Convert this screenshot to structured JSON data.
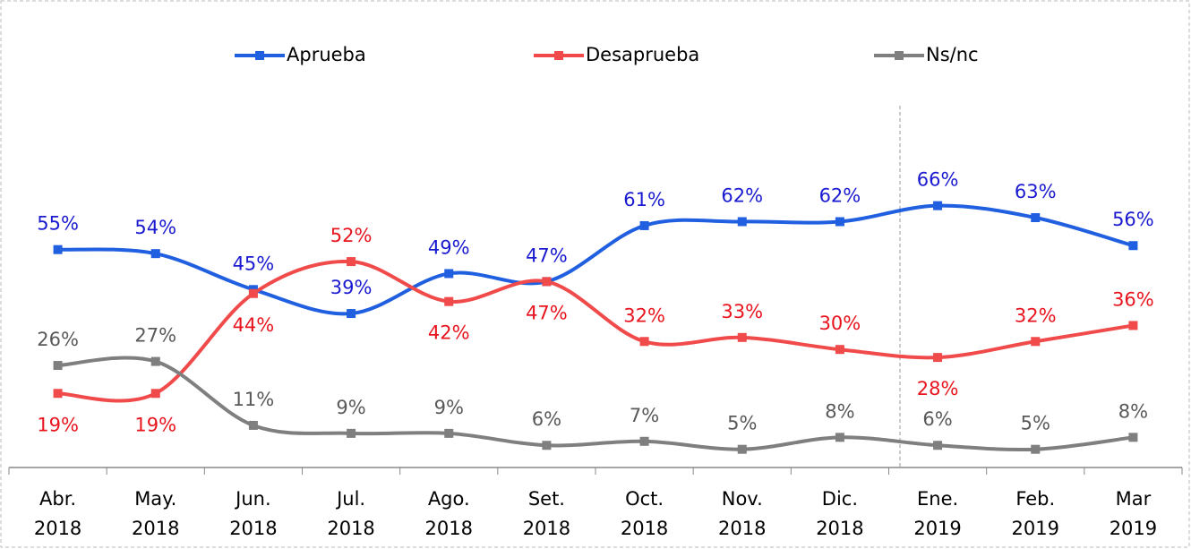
{
  "chart_data": {
    "type": "line",
    "categories": [
      [
        "Abr.",
        "2018"
      ],
      [
        "May.",
        "2018"
      ],
      [
        "Jun.",
        "2018"
      ],
      [
        "Jul.",
        "2018"
      ],
      [
        "Ago.",
        "2018"
      ],
      [
        "Set.",
        "2018"
      ],
      [
        "Oct.",
        "2018"
      ],
      [
        "Nov.",
        "2018"
      ],
      [
        "Dic.",
        "2018"
      ],
      [
        "Ene.",
        "2019"
      ],
      [
        "Feb.",
        "2019"
      ],
      [
        "Mar",
        "2019"
      ]
    ],
    "series": [
      {
        "name": "Aprueba",
        "color": "#1f5fe0",
        "label_color": "#1a1ad0",
        "values": [
          55,
          54,
          45,
          39,
          49,
          47,
          61,
          62,
          62,
          66,
          63,
          56
        ],
        "value_labels": [
          "55%",
          "54%",
          "45%",
          "39%",
          "49%",
          "47%",
          "61%",
          "62%",
          "62%",
          "66%",
          "63%",
          "56%"
        ]
      },
      {
        "name": "Desaprueba",
        "color": "#f04a4a",
        "label_color": "#e8141e",
        "values": [
          19,
          19,
          44,
          52,
          42,
          47,
          32,
          33,
          30,
          28,
          32,
          36
        ],
        "value_labels": [
          "19%",
          "19%",
          "44%",
          "52%",
          "42%",
          "47%",
          "32%",
          "33%",
          "30%",
          "28%",
          "32%",
          "36%"
        ]
      },
      {
        "name": "Ns/nc",
        "color": "#7f7f7f",
        "label_color": "#595959",
        "values": [
          26,
          27,
          11,
          9,
          9,
          6,
          7,
          5,
          8,
          6,
          5,
          8
        ],
        "value_labels": [
          "26%",
          "27%",
          "11%",
          "9%",
          "9%",
          "6%",
          "7%",
          "5%",
          "8%",
          "6%",
          "5%",
          "8%"
        ]
      }
    ],
    "ylim": [
      0,
      100
    ],
    "grid": false,
    "legend": "top"
  }
}
